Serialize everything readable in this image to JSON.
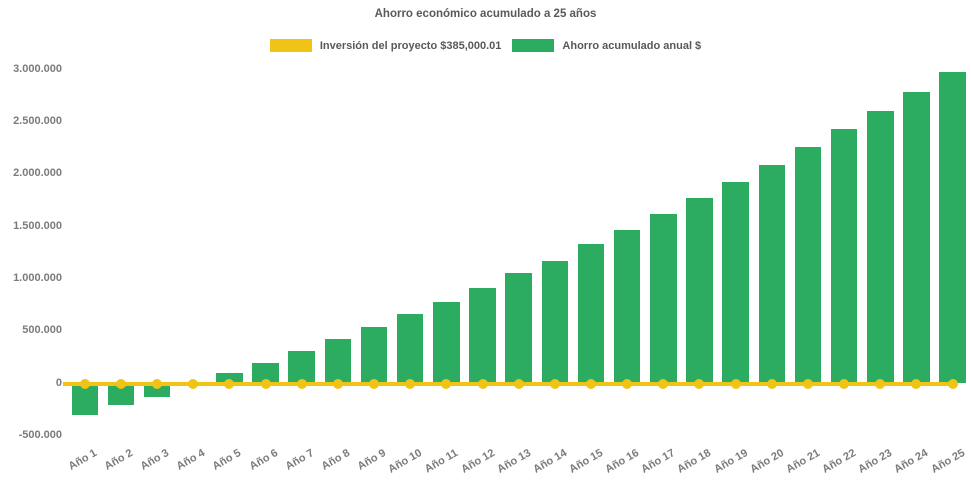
{
  "title": "Ahorro económico acumulado a 25 años",
  "legend": {
    "investment_label": "Inversión del proyecto $385,000.01",
    "savings_label": "Ahorro acumulado anual $"
  },
  "colors": {
    "investment_yellow": "#F0C314",
    "savings_green": "#2BAC60",
    "title_gray": "#595959",
    "tick_gray": "#7B7B7B",
    "background": "#FFFFFF"
  },
  "chart_data": {
    "type": "bar",
    "title": "Ahorro económico acumulado a 25 años",
    "xlabel": "",
    "ylabel": "",
    "categories": [
      "Año 1",
      "Año 2",
      "Año 3",
      "Año 4",
      "Año 5",
      "Año 6",
      "Año 7",
      "Año 8",
      "Año 9",
      "Año 10",
      "Año 11",
      "Año 12",
      "Año 13",
      "Año 14",
      "Año 15",
      "Año 16",
      "Año 17",
      "Año 18",
      "Año 19",
      "Año 20",
      "Año 21",
      "Año 22",
      "Año 23",
      "Año 24",
      "Año 25"
    ],
    "series": [
      {
        "name": "Inversión del proyecto $385,000.01",
        "type": "line",
        "marker": "circle",
        "color": "#F0C314",
        "values": [
          0,
          0,
          0,
          0,
          0,
          0,
          0,
          0,
          0,
          0,
          0,
          0,
          0,
          0,
          0,
          0,
          0,
          0,
          0,
          0,
          0,
          0,
          0,
          0,
          0
        ]
      },
      {
        "name": "Ahorro acumulado anual $",
        "type": "bar",
        "color": "#2BAC60",
        "values": [
          -310000,
          -210000,
          -130000,
          -30000,
          95000,
          190000,
          305000,
          420000,
          535000,
          660000,
          775000,
          910000,
          1050000,
          1165000,
          1330000,
          1460000,
          1620000,
          1770000,
          1920000,
          2080000,
          2255000,
          2430000,
          2600000,
          2780000,
          2975000
        ]
      }
    ],
    "ylim": [
      -500000,
      3000000
    ],
    "y_tick_step": 500000,
    "y_ticks": [
      {
        "label": "3.000.000",
        "value": 3000000
      },
      {
        "label": "2.500.000",
        "value": 2500000
      },
      {
        "label": "2.000.000",
        "value": 2000000
      },
      {
        "label": "1.500.000",
        "value": 1500000
      },
      {
        "label": "1.000.000",
        "value": 1000000
      },
      {
        "label": "500.000",
        "value": 500000
      },
      {
        "label": "0",
        "value": 0
      },
      {
        "label": "-500.000",
        "value": -500000
      }
    ],
    "grid": false,
    "legend_position": "top"
  }
}
